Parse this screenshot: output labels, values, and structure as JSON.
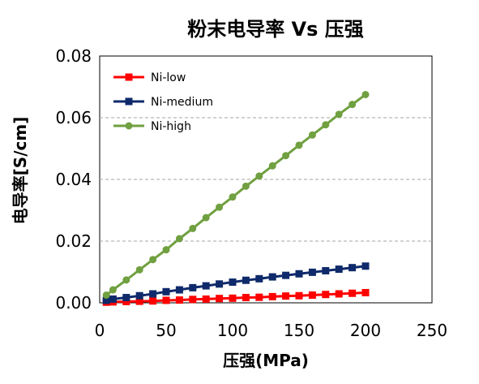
{
  "chart_data": {
    "type": "line",
    "title": "粉末电导率 Vs 压强",
    "xlabel": "压强(MPa)",
    "ylabel": "电导率[S/cm]",
    "xlim": [
      0,
      250
    ],
    "ylim": [
      0,
      0.08
    ],
    "x_ticks": [
      "0",
      "50",
      "100",
      "150",
      "200",
      "250"
    ],
    "y_ticks": [
      "0.00",
      "0.02",
      "0.04",
      "0.06",
      "0.08"
    ],
    "grid": "horizontal dashed",
    "legend_position": "top-left",
    "x": [
      5,
      10,
      20,
      30,
      40,
      50,
      60,
      70,
      80,
      90,
      100,
      110,
      120,
      130,
      140,
      150,
      160,
      170,
      180,
      190,
      200
    ],
    "series": [
      {
        "name": "Ni-low",
        "color": "#FF0000",
        "marker": "square",
        "values": [
          0.0002,
          0.0003,
          0.0004,
          0.0005,
          0.0006,
          0.0008,
          0.0009,
          0.0011,
          0.0012,
          0.0014,
          0.0015,
          0.0017,
          0.0018,
          0.002,
          0.0022,
          0.0023,
          0.0025,
          0.0027,
          0.0029,
          0.0031,
          0.0033
        ]
      },
      {
        "name": "Ni-medium",
        "color": "#0F2A6B",
        "marker": "square",
        "values": [
          0.0008,
          0.0012,
          0.0017,
          0.0023,
          0.0029,
          0.0036,
          0.0042,
          0.0049,
          0.0055,
          0.0061,
          0.0067,
          0.0073,
          0.0078,
          0.0084,
          0.0089,
          0.0094,
          0.0099,
          0.0104,
          0.0109,
          0.0114,
          0.0119
        ]
      },
      {
        "name": "Ni-high",
        "color": "#70A040",
        "marker": "circle",
        "values": [
          0.0025,
          0.0042,
          0.0074,
          0.0107,
          0.014,
          0.0172,
          0.0208,
          0.0241,
          0.0276,
          0.031,
          0.0343,
          0.0378,
          0.0411,
          0.0444,
          0.0477,
          0.0511,
          0.0544,
          0.0577,
          0.0611,
          0.0643,
          0.0675
        ]
      }
    ]
  }
}
